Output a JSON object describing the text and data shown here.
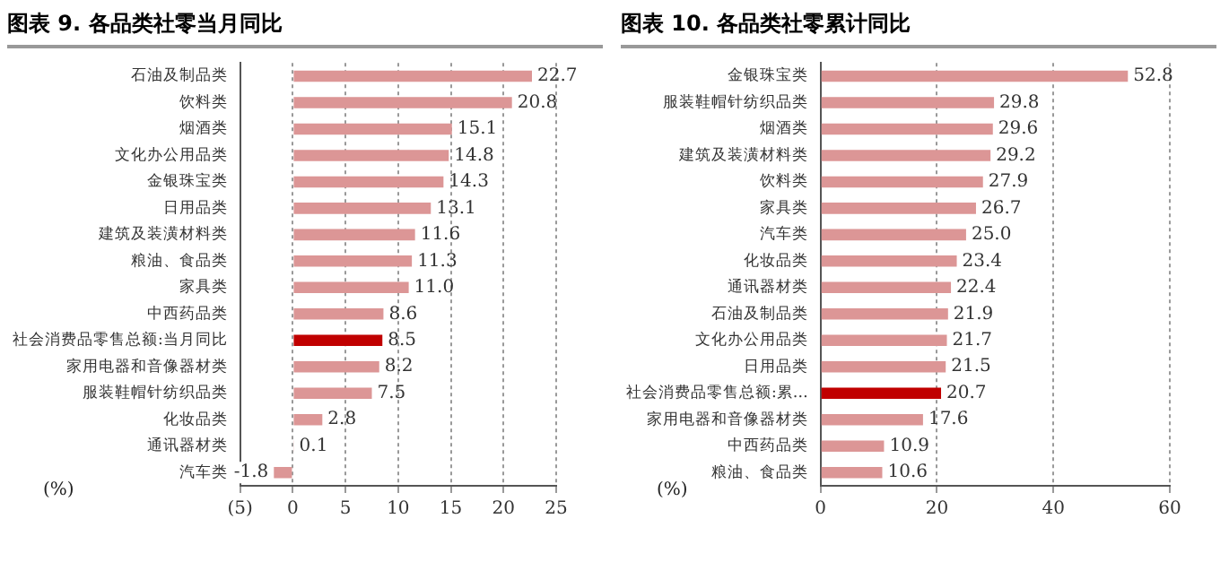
{
  "chart_data": [
    {
      "type": "bar",
      "orientation": "horizontal",
      "title": "图表 9. 各品类社零当月同比",
      "categories": [
        "石油及制品类",
        "饮料类",
        "烟酒类",
        "文化办公用品类",
        "金银珠宝类",
        "日用品类",
        "建筑及装潢材料类",
        "粮油、食品类",
        "家具类",
        "中西药品类",
        "社会消费品零售总额:当月同比",
        "家用电器和音像器材类",
        "服装鞋帽针纺织品类",
        "化妆品类",
        "通讯器材类",
        "汽车类"
      ],
      "values": [
        22.7,
        20.8,
        15.1,
        14.8,
        14.3,
        13.1,
        11.6,
        11.3,
        11.0,
        8.6,
        8.5,
        8.2,
        7.5,
        2.8,
        0.1,
        -1.8
      ],
      "value_labels": [
        "22.7",
        "20.8",
        "15.1",
        "14.8",
        "14.3",
        "13.1",
        "11.6",
        "11.3",
        "11.0",
        "8.6",
        "8.5",
        "8.2",
        "7.5",
        "2.8",
        "0.1",
        "-1.8"
      ],
      "colors": [
        "#dc9696",
        "#dc9696",
        "#dc9696",
        "#dc9696",
        "#dc9696",
        "#dc9696",
        "#dc9696",
        "#dc9696",
        "#dc9696",
        "#dc9696",
        "#c00000",
        "#dc9696",
        "#dc9696",
        "#dc9696",
        "#dc9696",
        "#dc9696"
      ],
      "xlim": [
        -5,
        25
      ],
      "xticks": [
        {
          "value": -5,
          "label": "(5)"
        },
        0,
        5,
        10,
        15,
        20,
        25
      ],
      "grid": "x",
      "annotations": [
        "(%)"
      ]
    },
    {
      "type": "bar",
      "orientation": "horizontal",
      "title": "图表 10. 各品类社零累计同比",
      "categories": [
        "金银珠宝类",
        "服装鞋帽针纺织品类",
        "烟酒类",
        "建筑及装潢材料类",
        "饮料类",
        "家具类",
        "汽车类",
        "化妆品类",
        "通讯器材类",
        "石油及制品类",
        "文化办公用品类",
        "日用品类",
        "社会消费品零售总额:累…",
        "家用电器和音像器材类",
        "中西药品类",
        "粮油、食品类"
      ],
      "values": [
        52.8,
        29.8,
        29.6,
        29.2,
        27.9,
        26.7,
        25.0,
        23.4,
        22.4,
        21.9,
        21.7,
        21.5,
        20.7,
        17.6,
        10.9,
        10.6
      ],
      "value_labels": [
        "52.8",
        "29.8",
        "29.6",
        "29.2",
        "27.9",
        "26.7",
        "25.0",
        "23.4",
        "22.4",
        "21.9",
        "21.7",
        "21.5",
        "20.7",
        "17.6",
        "10.9",
        "10.6"
      ],
      "colors": [
        "#dc9696",
        "#dc9696",
        "#dc9696",
        "#dc9696",
        "#dc9696",
        "#dc9696",
        "#dc9696",
        "#dc9696",
        "#dc9696",
        "#dc9696",
        "#dc9696",
        "#dc9696",
        "#c00000",
        "#dc9696",
        "#dc9696",
        "#dc9696"
      ],
      "xlim": [
        0,
        60
      ],
      "xticks": [
        0,
        20,
        40,
        60
      ],
      "grid": "x",
      "annotations": [
        "(%)"
      ]
    }
  ]
}
